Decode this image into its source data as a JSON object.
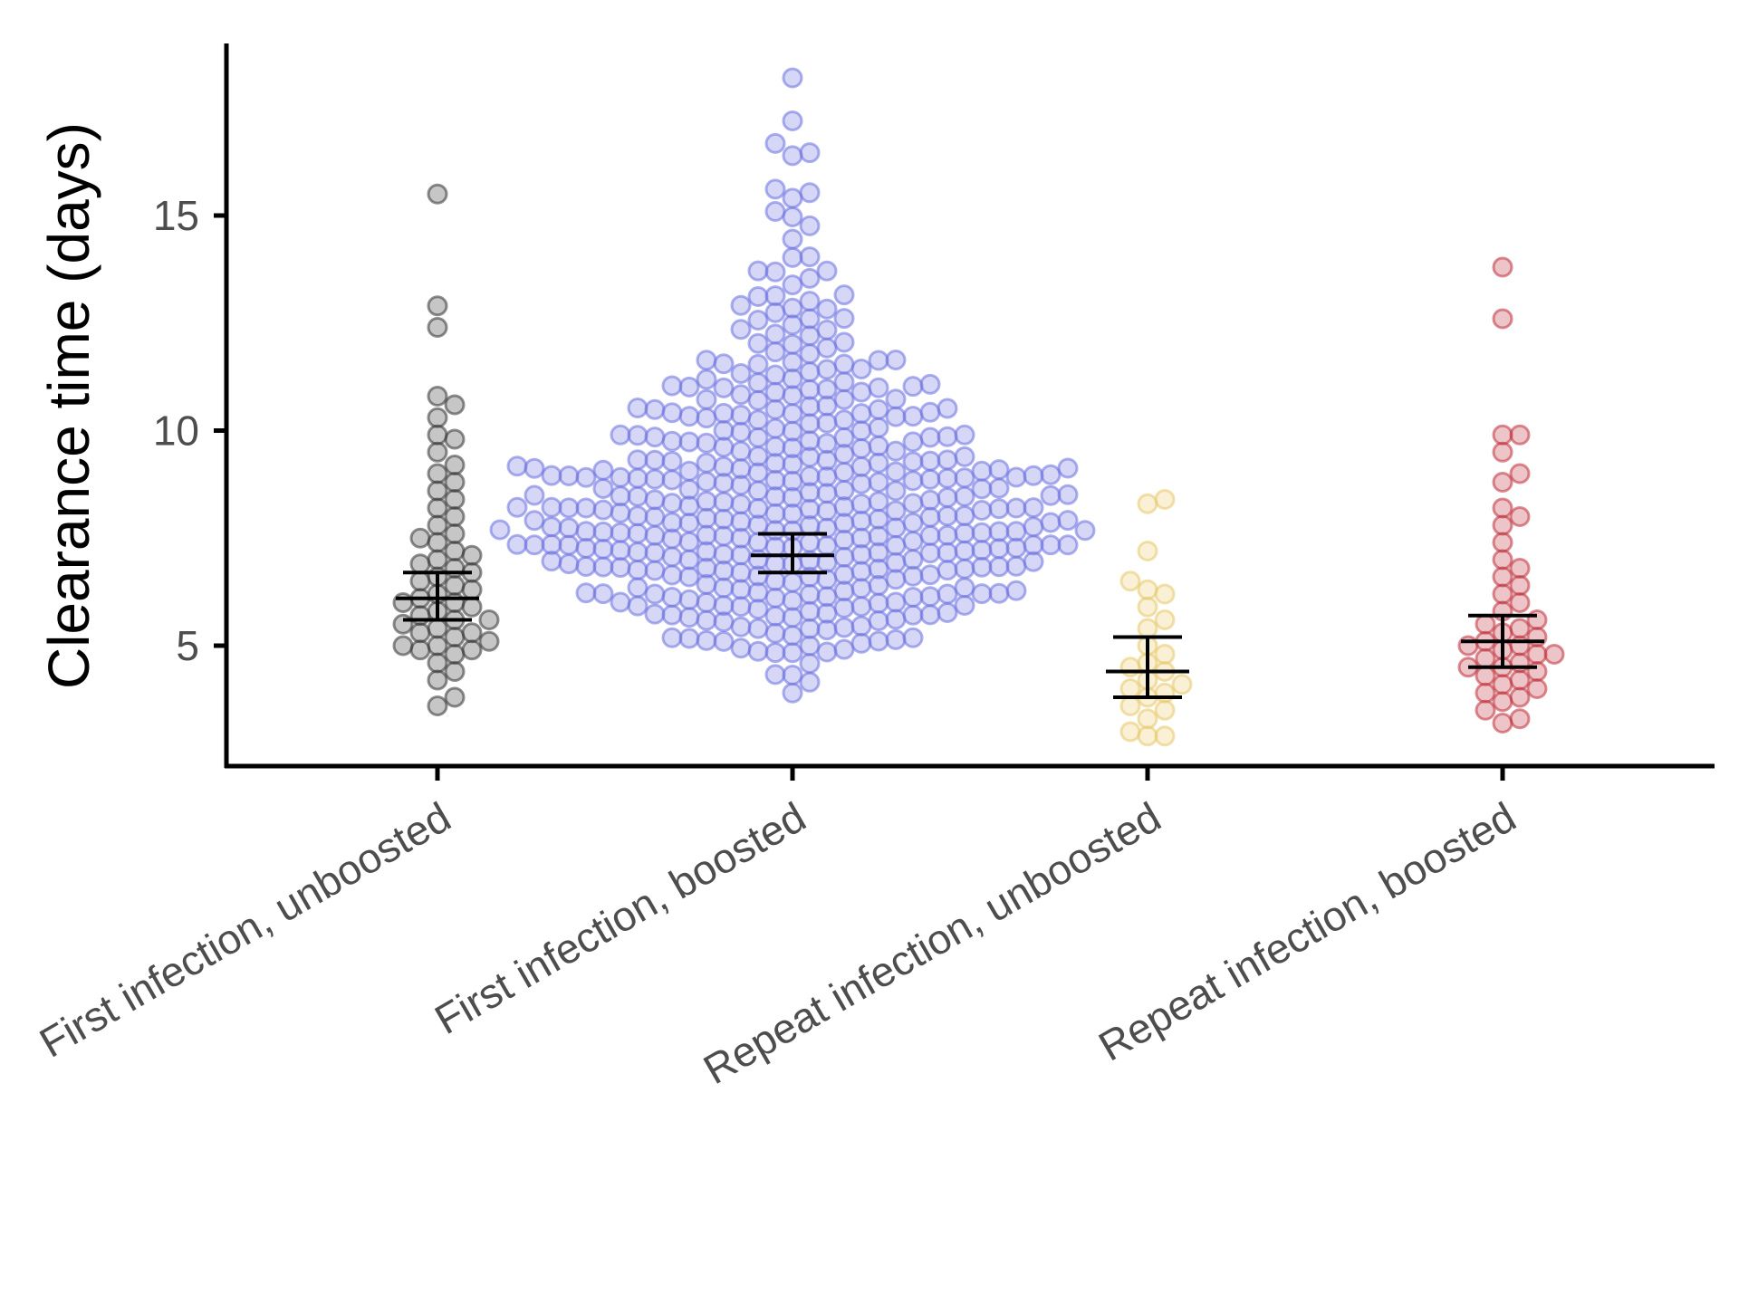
{
  "chart_data": {
    "type": "scatter",
    "subtype": "beeswarm with mean and confidence interval",
    "ylabel": "Clearance time (days)",
    "xlabel": "",
    "ylim": [
      2.2,
      19.0
    ],
    "yticks": [
      5,
      10,
      15
    ],
    "ytick_labels": [
      "5",
      "10",
      "15"
    ],
    "categories": [
      "First infection, unboosted",
      "First infection, boosted",
      "Repeat infection, unboosted",
      "Repeat infection, boosted"
    ],
    "grid": false,
    "legend": "none",
    "series": [
      {
        "color": "#333333",
        "mean": 6.1,
        "ci_low": 5.6,
        "ci_high": 6.7,
        "values": [
          3.6,
          3.8,
          4.2,
          4.4,
          4.6,
          4.8,
          4.9,
          4.9,
          5.0,
          5.0,
          5.1,
          5.2,
          5.3,
          5.3,
          5.4,
          5.5,
          5.6,
          5.6,
          5.7,
          5.8,
          5.9,
          6.0,
          6.0,
          6.1,
          6.2,
          6.3,
          6.4,
          6.5,
          6.6,
          6.7,
          6.8,
          6.9,
          7.0,
          7.1,
          7.2,
          7.4,
          7.5,
          7.6,
          7.8,
          8.0,
          8.2,
          8.4,
          8.6,
          8.8,
          9.0,
          9.2,
          9.5,
          9.8,
          9.9,
          10.3,
          10.6,
          10.8,
          12.4,
          12.9,
          15.5
        ]
      },
      {
        "color": "#6a6fe0",
        "mean": 7.1,
        "ci_low": 6.7,
        "ci_high": 7.6,
        "density": [
          [
            4.0,
            3
          ],
          [
            4.5,
            8
          ],
          [
            5.0,
            16
          ],
          [
            5.5,
            22
          ],
          [
            6.0,
            28
          ],
          [
            6.5,
            34
          ],
          [
            7.0,
            38
          ],
          [
            7.5,
            40
          ],
          [
            8.0,
            38
          ],
          [
            8.5,
            33
          ],
          [
            9.0,
            28
          ],
          [
            9.5,
            24
          ],
          [
            10.0,
            20
          ],
          [
            10.5,
            16
          ],
          [
            11.0,
            13
          ],
          [
            11.5,
            10
          ],
          [
            12.0,
            8
          ],
          [
            12.5,
            7
          ],
          [
            13.0,
            5
          ],
          [
            13.5,
            4
          ],
          [
            14.0,
            3
          ],
          [
            14.5,
            2
          ],
          [
            15.0,
            2
          ],
          [
            15.5,
            2
          ],
          [
            16.0,
            1.5
          ],
          [
            16.5,
            0.6
          ],
          [
            17.0,
            0.4
          ],
          [
            18.0,
            0.3
          ]
        ],
        "extremes": [
          17.2,
          18.2,
          3.9
        ]
      },
      {
        "color": "#e8c86a",
        "mean": 4.4,
        "ci_low": 3.8,
        "ci_high": 5.2,
        "values": [
          2.9,
          2.9,
          3.0,
          3.3,
          3.5,
          3.6,
          3.8,
          3.9,
          4.0,
          4.1,
          4.2,
          4.4,
          4.5,
          4.6,
          4.8,
          5.0,
          5.4,
          5.6,
          5.9,
          6.2,
          6.3,
          6.5,
          7.2,
          8.3,
          8.4
        ]
      },
      {
        "color": "#c0303a",
        "mean": 5.1,
        "ci_low": 4.5,
        "ci_high": 5.7,
        "values": [
          3.2,
          3.3,
          3.5,
          3.7,
          3.8,
          3.9,
          4.0,
          4.1,
          4.2,
          4.3,
          4.4,
          4.5,
          4.5,
          4.6,
          4.7,
          4.8,
          4.8,
          4.9,
          5.0,
          5.0,
          5.1,
          5.2,
          5.3,
          5.4,
          5.5,
          5.6,
          5.8,
          6.0,
          6.2,
          6.4,
          6.6,
          6.8,
          7.0,
          7.4,
          7.8,
          8.0,
          8.2,
          8.8,
          9.0,
          9.5,
          9.9,
          9.9,
          12.6,
          13.8
        ]
      }
    ]
  }
}
